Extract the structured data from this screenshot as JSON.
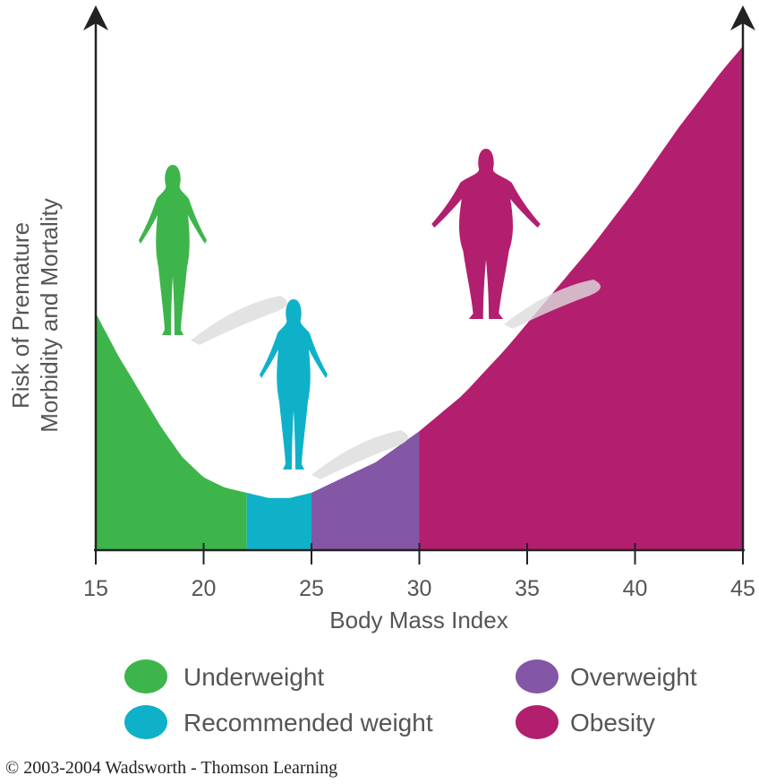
{
  "chart_data": {
    "type": "area",
    "title": "",
    "xlabel": "Body Mass Index",
    "ylabel_lines": [
      "Risk of Premature",
      "Morbidity and Mortality"
    ],
    "xlim": [
      15,
      45
    ],
    "xticks": [
      "15",
      "20",
      "25",
      "30",
      "35",
      "40",
      "45"
    ],
    "ylim": [
      0,
      1
    ],
    "grid": false,
    "curve": {
      "x": [
        15,
        16,
        17,
        18,
        19,
        20,
        21,
        22,
        23,
        24,
        25,
        26,
        27,
        28,
        29,
        30,
        32,
        34,
        36,
        38,
        40,
        42,
        44,
        45
      ],
      "y": [
        0.46,
        0.38,
        0.31,
        0.24,
        0.18,
        0.14,
        0.12,
        0.11,
        0.1,
        0.1,
        0.11,
        0.13,
        0.15,
        0.17,
        0.2,
        0.23,
        0.3,
        0.39,
        0.49,
        0.59,
        0.7,
        0.82,
        0.93,
        0.98
      ]
    },
    "segments": [
      {
        "name": "Underweight",
        "from": 15,
        "to": 22,
        "color": "#3db54a"
      },
      {
        "name": "Recommended weight",
        "from": 22,
        "to": 25,
        "color": "#0fb1c9"
      },
      {
        "name": "Overweight",
        "from": 25,
        "to": 30,
        "color": "#8456a6"
      },
      {
        "name": "Obesity",
        "from": 30,
        "to": 45,
        "color": "#b21f6e"
      }
    ],
    "figures": [
      {
        "name": "underweight-figure",
        "color": "#3db54a"
      },
      {
        "name": "recommended-figure",
        "color": "#0fb1c9"
      },
      {
        "name": "obese-figure",
        "color": "#b21f6e"
      }
    ],
    "legend_placement": "bottom"
  },
  "legend": [
    {
      "label": "Underweight",
      "color": "#3db54a"
    },
    {
      "label": "Overweight",
      "color": "#8456a6"
    },
    {
      "label": "Recommended weight",
      "color": "#0fb1c9"
    },
    {
      "label": "Obesity",
      "color": "#b21f6e"
    }
  ],
  "copyright": "© 2003-2004 Wadsworth - Thomson Learning"
}
